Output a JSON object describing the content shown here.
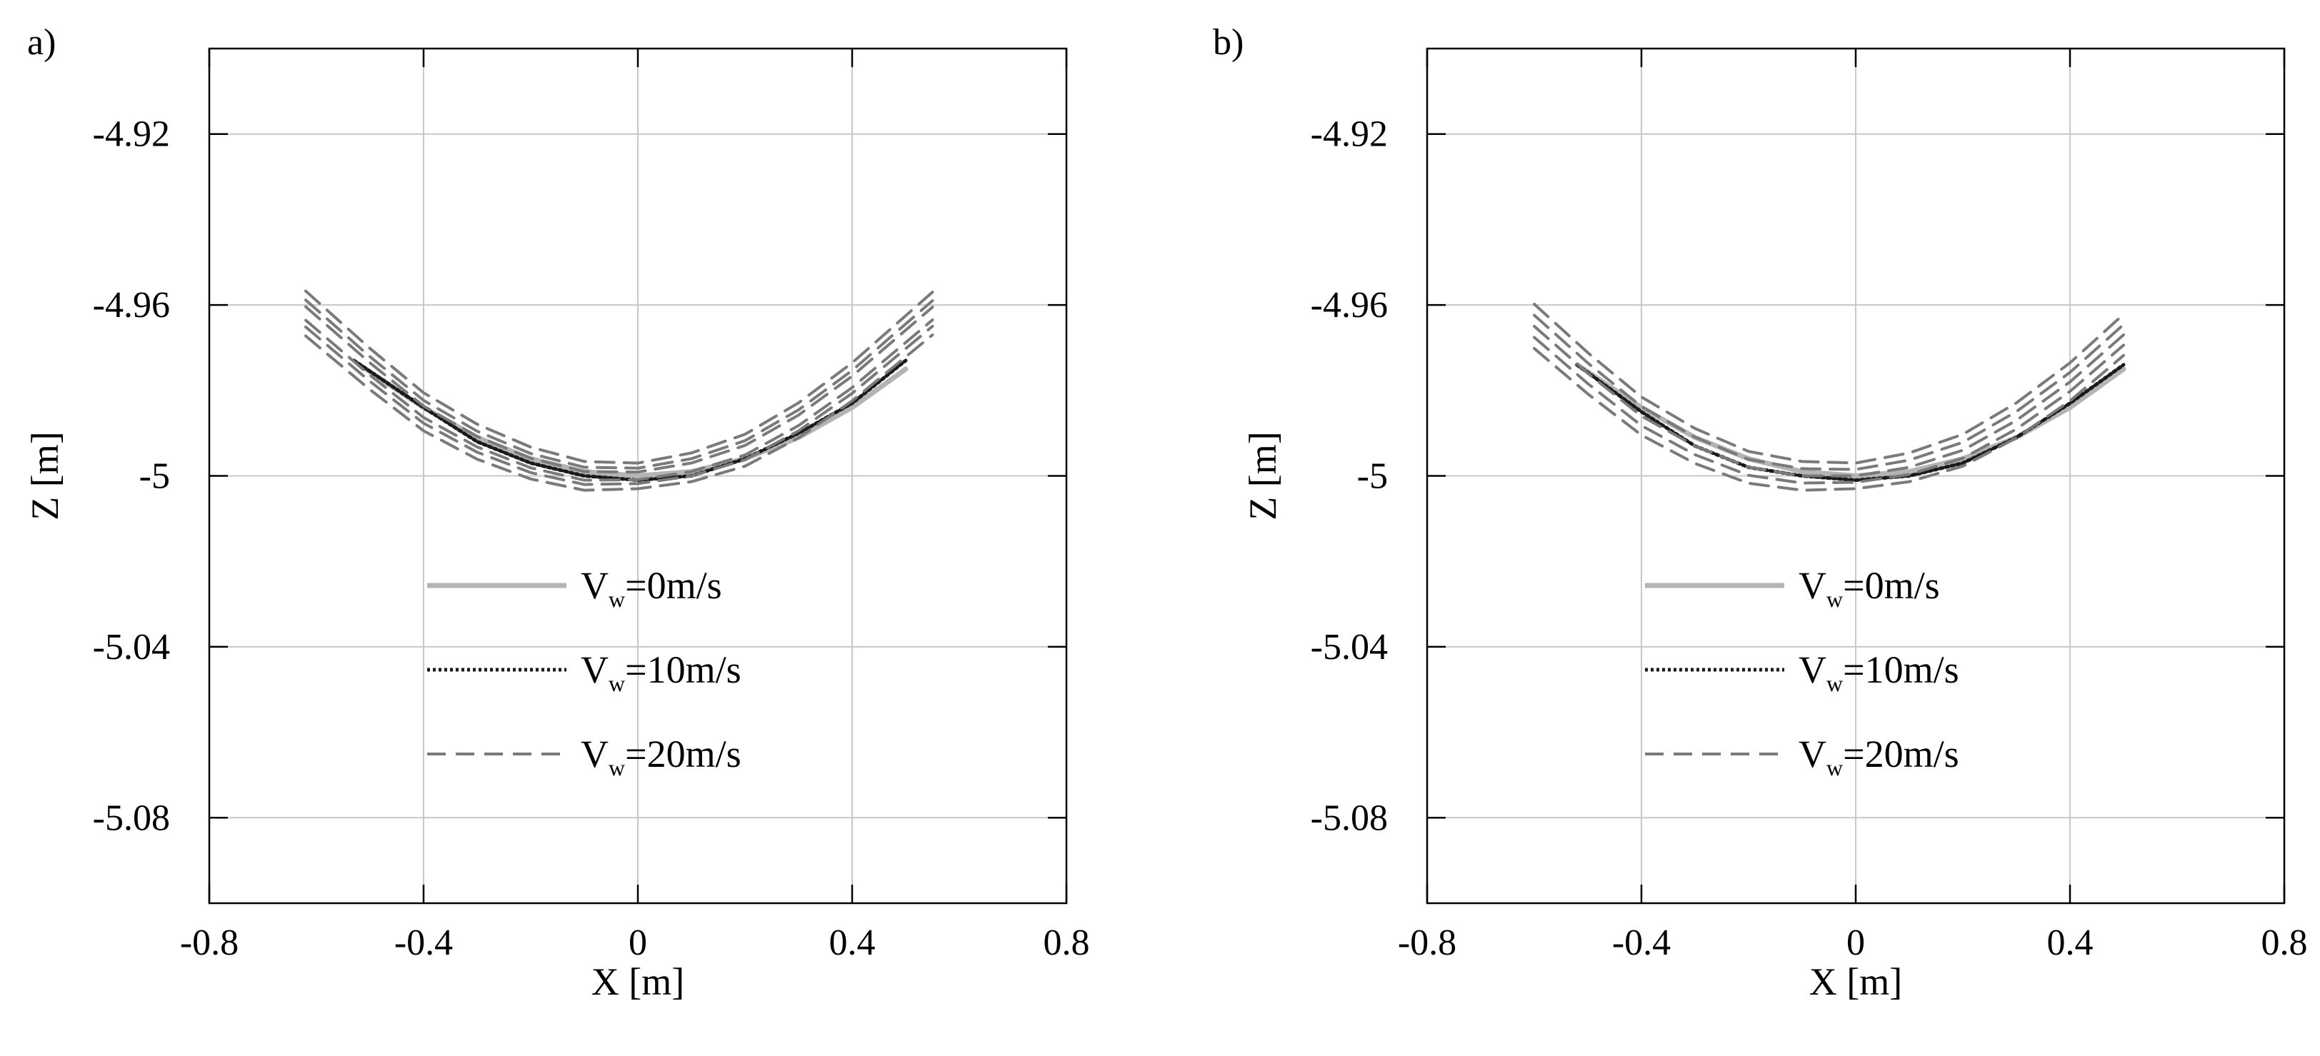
{
  "colors": {
    "background": "#ffffff",
    "axis": "#000000",
    "grid": "#c8c8c8",
    "series_0": "#b4b4b4",
    "series_10": "#1a1a1a",
    "series_20": "#7a7a7a"
  },
  "chart_data": [
    {
      "panel_label": "a)",
      "type": "line",
      "title": "",
      "xlabel": "X [m]",
      "ylabel": "Z [m]",
      "xlim": [
        -0.8,
        0.8
      ],
      "ylim": [
        -5.1,
        -4.9
      ],
      "xticks": [
        -0.8,
        -0.4,
        0,
        0.4,
        0.8
      ],
      "xtick_labels": [
        "-0.8",
        "-0.4",
        "0",
        "0.4",
        "0.8"
      ],
      "yticks": [
        -4.92,
        -4.96,
        -5,
        -5.04,
        -5.08
      ],
      "ytick_labels": [
        "-4.92",
        "-4.96",
        "-5",
        "-5.04",
        "-5.08"
      ],
      "grid": true,
      "legend_position": "lower-center",
      "legend": [
        {
          "base": "V",
          "sub": "w",
          "rest": "=0m/s",
          "style": "solid",
          "color": "#b4b4b4"
        },
        {
          "base": "V",
          "sub": "w",
          "rest": "=10m/s",
          "style": "dotted",
          "color": "#1a1a1a"
        },
        {
          "base": "V",
          "sub": "w",
          "rest": "=20m/s",
          "style": "dashed",
          "color": "#7a7a7a"
        }
      ],
      "series": [
        {
          "name": "Vw=0m/s",
          "style": "solid",
          "color": "#b4b4b4",
          "x": [
            -0.52,
            -0.4,
            -0.3,
            -0.2,
            -0.1,
            0.0,
            0.1,
            0.2,
            0.3,
            0.4,
            0.5
          ],
          "y": [
            -4.974,
            -4.984,
            -4.991,
            -4.996,
            -4.999,
            -5.0,
            -4.999,
            -4.996,
            -4.991,
            -4.984,
            -4.975
          ]
        },
        {
          "name": "Vw=10m/s",
          "style": "dotted",
          "color": "#1a1a1a",
          "x": [
            -0.53,
            -0.4,
            -0.3,
            -0.2,
            -0.1,
            0.0,
            0.1,
            0.2,
            0.3,
            0.4,
            0.5
          ],
          "y": [
            -4.973,
            -4.984,
            -4.992,
            -4.997,
            -5.0,
            -5.001,
            -5.0,
            -4.996,
            -4.99,
            -4.983,
            -4.973
          ]
        },
        {
          "name": "Vw=20m/s",
          "style": "dashed",
          "color": "#7a7a7a",
          "x": [
            -0.62,
            -0.5,
            -0.4,
            -0.3,
            -0.2,
            -0.1,
            0.0,
            0.1,
            0.2,
            0.3,
            0.4,
            0.55
          ],
          "y": [
            -4.962,
            -4.975,
            -4.985,
            -4.992,
            -4.997,
            -5.0,
            -5.0,
            -4.998,
            -4.994,
            -4.987,
            -4.978,
            -4.962
          ],
          "ensemble_offsets": [
            -0.005,
            -0.003,
            -0.0015,
            0.0015,
            0.003,
            0.005
          ]
        }
      ]
    },
    {
      "panel_label": "b)",
      "type": "line",
      "title": "",
      "xlabel": "X [m]",
      "ylabel": "Z [m]",
      "xlim": [
        -0.8,
        0.8
      ],
      "ylim": [
        -5.1,
        -4.9
      ],
      "xticks": [
        -0.8,
        -0.4,
        0,
        0.4,
        0.8
      ],
      "xtick_labels": [
        "-0.8",
        "-0.4",
        "0",
        "0.4",
        "0.8"
      ],
      "yticks": [
        -4.92,
        -4.96,
        -5,
        -5.04,
        -5.08
      ],
      "ytick_labels": [
        "-4.92",
        "-4.96",
        "-5",
        "-5.04",
        "-5.08"
      ],
      "grid": true,
      "legend_position": "lower-center",
      "legend": [
        {
          "base": "V",
          "sub": "w",
          "rest": "=0m/s",
          "style": "solid",
          "color": "#b4b4b4"
        },
        {
          "base": "V",
          "sub": "w",
          "rest": "=10m/s",
          "style": "dotted",
          "color": "#1a1a1a"
        },
        {
          "base": "V",
          "sub": "w",
          "rest": "=20m/s",
          "style": "dashed",
          "color": "#7a7a7a"
        }
      ],
      "series": [
        {
          "name": "Vw=0m/s",
          "style": "solid",
          "color": "#b4b4b4",
          "x": [
            -0.52,
            -0.4,
            -0.3,
            -0.2,
            -0.1,
            0.0,
            0.1,
            0.2,
            0.3,
            0.4,
            0.5
          ],
          "y": [
            -4.974,
            -4.984,
            -4.991,
            -4.996,
            -4.999,
            -5.0,
            -4.999,
            -4.996,
            -4.991,
            -4.984,
            -4.975
          ]
        },
        {
          "name": "Vw=10m/s",
          "style": "dotted",
          "color": "#1a1a1a",
          "x": [
            -0.52,
            -0.4,
            -0.3,
            -0.2,
            -0.1,
            0.0,
            0.1,
            0.2,
            0.3,
            0.4,
            0.5
          ],
          "y": [
            -4.974,
            -4.985,
            -4.993,
            -4.998,
            -5.0,
            -5.001,
            -5.0,
            -4.997,
            -4.991,
            -4.983,
            -4.974
          ]
        },
        {
          "name": "Vw=20m/s",
          "style": "dashed",
          "color": "#7a7a7a",
          "x": [
            -0.6,
            -0.5,
            -0.4,
            -0.3,
            -0.2,
            -0.1,
            0.0,
            0.1,
            0.2,
            0.3,
            0.4,
            0.5
          ],
          "y": [
            -4.965,
            -4.976,
            -4.986,
            -4.993,
            -4.998,
            -5.0,
            -5.0,
            -4.998,
            -4.994,
            -4.987,
            -4.978,
            -4.967
          ],
          "ensemble_offsets": [
            -0.005,
            -0.0025,
            0.0,
            0.0025,
            0.005
          ]
        }
      ]
    }
  ]
}
